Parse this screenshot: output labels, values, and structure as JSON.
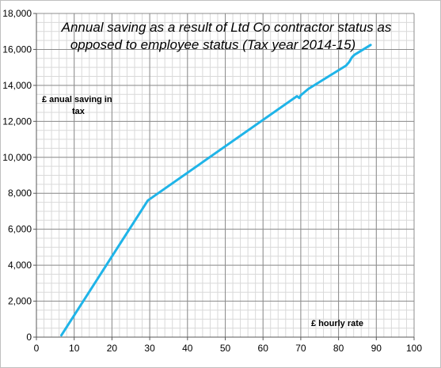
{
  "chart_data": {
    "type": "line",
    "title_lines": [
      "Annual saving as a result of Ltd Co contractor status as",
      "opposed to employee status (Tax year 2014-15)"
    ],
    "ylabel_lines": [
      "£ anual saving in",
      "tax"
    ],
    "xlabel": "£ hourly rate",
    "xlim": [
      0,
      100
    ],
    "ylim": [
      0,
      18000
    ],
    "x_ticks": [
      "0",
      "10",
      "20",
      "30",
      "40",
      "50",
      "60",
      "70",
      "80",
      "90",
      "100"
    ],
    "y_ticks": [
      "0",
      "2,000",
      "4,000",
      "6,000",
      "8,000",
      "10,000",
      "12,000",
      "14,000",
      "16,000",
      "18,000"
    ],
    "grid": true,
    "minor_grid": true,
    "legend": "none",
    "series": [
      {
        "color": "#1fb4e8",
        "x": [
          6.6,
          29.5,
          69.0,
          69.6,
          70.0,
          72.0,
          82.0,
          82.8,
          83.5,
          84.2,
          88.5
        ],
        "y": [
          100,
          7600,
          13400,
          13300,
          13450,
          13800,
          15100,
          15300,
          15550,
          15700,
          16250
        ]
      }
    ]
  }
}
